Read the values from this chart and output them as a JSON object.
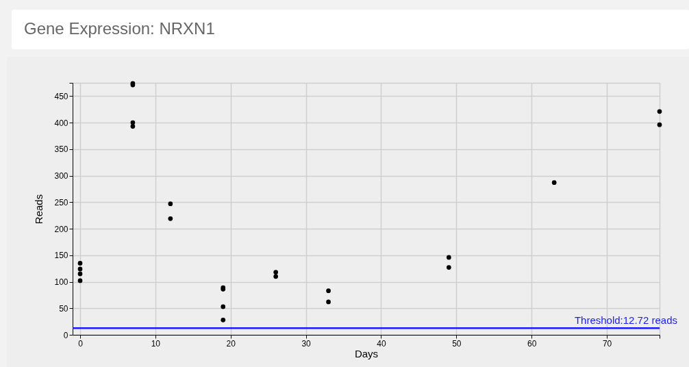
{
  "chart_data": {
    "type": "scatter",
    "title": "Gene Expression: NRXN1",
    "xlabel": "Days",
    "ylabel": "Reads",
    "series": [
      {
        "color": "#000000",
        "x": [
          0,
          0,
          0,
          0,
          7,
          7,
          7,
          7,
          12,
          12,
          19,
          19,
          19,
          19,
          26,
          26,
          33,
          33,
          49,
          49,
          63,
          77,
          77
        ],
        "values": [
          135,
          124,
          115,
          102,
          474,
          471,
          400,
          393,
          247,
          219,
          89,
          86,
          53,
          28,
          118,
          110,
          83,
          62,
          146,
          127,
          287,
          421,
          396
        ]
      }
    ],
    "xlim": [
      -1,
      77
    ],
    "ylim": [
      0,
      475
    ],
    "xticks": [
      0,
      10,
      20,
      30,
      40,
      50,
      60,
      70,
      {
        "value": 77,
        "label": null
      }
    ],
    "yticks": [
      0,
      50,
      100,
      150,
      200,
      250,
      300,
      350,
      400,
      450,
      {
        "value": 475,
        "label": null
      }
    ],
    "ref_lines": [
      {
        "axis": "y",
        "value": 12.72,
        "label": "Threshold:12.72 reads",
        "color": "#1a1aff"
      }
    ],
    "grid": true,
    "marker": "circle"
  }
}
